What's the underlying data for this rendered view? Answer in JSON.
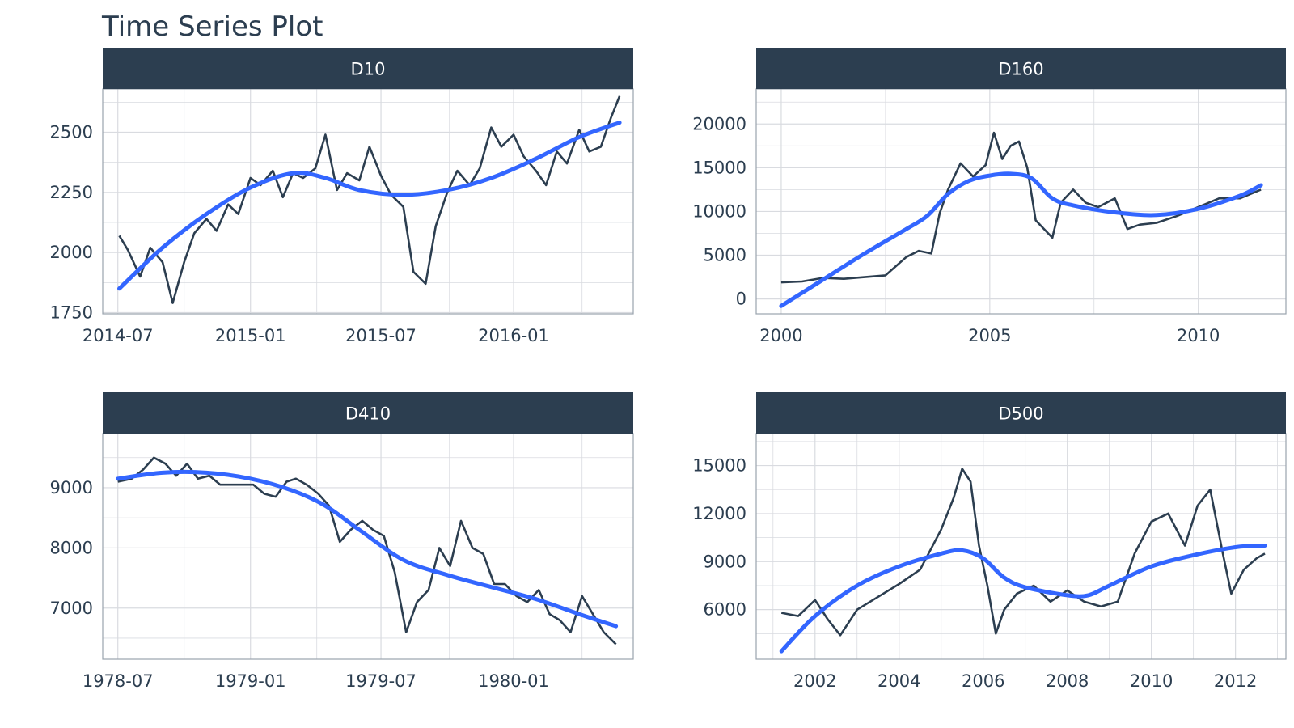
{
  "chart_data": {
    "type": "line",
    "title": "Time Series Plot",
    "colors": {
      "strip_bg": "#2c3e50",
      "strip_text": "#ffffff",
      "series": "#2c3e50",
      "smooth": "#3366ff",
      "grid": "#d9dbe0",
      "text": "#2c3e50"
    },
    "facets": [
      {
        "id": "D10",
        "label": "D10",
        "x_type": "date",
        "xlim": [
          "2014-06-10",
          "2016-06-15"
        ],
        "ylim": [
          1745,
          2680
        ],
        "x_ticks": [
          "2014-07",
          "2015-01",
          "2015-07",
          "2016-01"
        ],
        "y_ticks": [
          1750,
          2000,
          2250,
          2500
        ],
        "series": {
          "x": [
            "2014-07-03",
            "2014-07-15",
            "2014-08-01",
            "2014-08-15",
            "2014-09-01",
            "2014-09-15",
            "2014-10-01",
            "2014-10-15",
            "2014-11-01",
            "2014-11-15",
            "2014-12-01",
            "2014-12-15",
            "2015-01-01",
            "2015-01-15",
            "2015-02-01",
            "2015-02-15",
            "2015-03-01",
            "2015-03-15",
            "2015-04-01",
            "2015-04-15",
            "2015-05-01",
            "2015-05-15",
            "2015-06-01",
            "2015-06-15",
            "2015-07-01",
            "2015-07-15",
            "2015-08-01",
            "2015-08-15",
            "2015-09-01",
            "2015-09-15",
            "2015-10-01",
            "2015-10-15",
            "2015-11-01",
            "2015-11-15",
            "2015-12-01",
            "2015-12-15",
            "2016-01-01",
            "2016-01-15",
            "2016-02-01",
            "2016-02-15",
            "2016-03-01",
            "2016-03-15",
            "2016-04-01",
            "2016-04-15",
            "2016-05-01",
            "2016-05-15",
            "2016-05-27"
          ],
          "y": [
            2070,
            2010,
            1900,
            2020,
            1960,
            1790,
            1960,
            2080,
            2140,
            2090,
            2200,
            2160,
            2310,
            2280,
            2340,
            2230,
            2330,
            2310,
            2350,
            2490,
            2260,
            2330,
            2300,
            2440,
            2320,
            2240,
            2190,
            1920,
            1870,
            2110,
            2250,
            2340,
            2280,
            2350,
            2520,
            2440,
            2490,
            2400,
            2340,
            2280,
            2420,
            2370,
            2510,
            2420,
            2440,
            2560,
            2650
          ]
        },
        "smooth": {
          "x": [
            "2014-07-03",
            "2014-09-01",
            "2014-11-01",
            "2015-01-01",
            "2015-03-01",
            "2015-04-15",
            "2015-06-01",
            "2015-08-01",
            "2015-10-01",
            "2015-12-01",
            "2016-02-01",
            "2016-04-01",
            "2016-05-27"
          ],
          "y": [
            1850,
            2020,
            2160,
            2270,
            2330,
            2310,
            2260,
            2240,
            2260,
            2310,
            2390,
            2480,
            2540
          ]
        }
      },
      {
        "id": "D160",
        "label": "D160",
        "x_type": "number",
        "xlim": [
          1999.4,
          2012.1
        ],
        "ylim": [
          -1700,
          24000
        ],
        "x_ticks": [
          2000,
          2005,
          2010
        ],
        "y_ticks": [
          0,
          5000,
          10000,
          15000,
          20000
        ],
        "series": {
          "x": [
            2000.0,
            2000.5,
            2001.0,
            2001.5,
            2002.0,
            2002.5,
            2003.0,
            2003.3,
            2003.6,
            2003.8,
            2004.0,
            2004.3,
            2004.6,
            2004.9,
            2005.1,
            2005.3,
            2005.5,
            2005.7,
            2005.9,
            2006.1,
            2006.3,
            2006.5,
            2006.7,
            2007.0,
            2007.3,
            2007.6,
            2008.0,
            2008.3,
            2008.6,
            2009.0,
            2009.5,
            2010.0,
            2010.5,
            2011.0,
            2011.5
          ],
          "y": [
            1900,
            2000,
            2400,
            2300,
            2500,
            2700,
            4800,
            5500,
            5200,
            9800,
            12500,
            15500,
            14000,
            15300,
            19000,
            16000,
            17500,
            18000,
            15000,
            9000,
            8000,
            7000,
            11000,
            12500,
            11000,
            10500,
            11500,
            8000,
            8500,
            8700,
            9500,
            10500,
            11500,
            11500,
            12500
          ]
        },
        "smooth": {
          "x": [
            2000.0,
            2001.0,
            2002.0,
            2003.0,
            2003.5,
            2004.0,
            2004.5,
            2005.0,
            2005.5,
            2006.0,
            2006.5,
            2007.0,
            2008.0,
            2009.0,
            2010.0,
            2011.0,
            2011.5
          ],
          "y": [
            -800,
            2200,
            5200,
            8000,
            9500,
            12000,
            13500,
            14100,
            14300,
            13800,
            11500,
            10700,
            9900,
            9600,
            10300,
            11800,
            13000
          ]
        }
      },
      {
        "id": "D410",
        "label": "D410",
        "x_type": "date",
        "xlim": [
          "1978-06-10",
          "1980-06-15"
        ],
        "ylim": [
          6150,
          9900
        ],
        "x_ticks": [
          "1978-07",
          "1979-01",
          "1979-07",
          "1980-01"
        ],
        "y_ticks": [
          7000,
          8000,
          9000
        ],
        "series": {
          "x": [
            "1978-07-01",
            "1978-07-20",
            "1978-08-05",
            "1978-08-20",
            "1978-09-05",
            "1978-09-20",
            "1978-10-05",
            "1978-10-20",
            "1978-11-05",
            "1978-11-20",
            "1978-12-05",
            "1978-12-20",
            "1979-01-05",
            "1979-01-20",
            "1979-02-05",
            "1979-02-20",
            "1979-03-05",
            "1979-03-20",
            "1979-04-05",
            "1979-04-20",
            "1979-05-05",
            "1979-05-20",
            "1979-06-05",
            "1979-06-20",
            "1979-07-05",
            "1979-07-20",
            "1979-08-05",
            "1979-08-20",
            "1979-09-05",
            "1979-09-20",
            "1979-10-05",
            "1979-10-20",
            "1979-11-05",
            "1979-11-20",
            "1979-12-05",
            "1979-12-20",
            "1980-01-05",
            "1980-01-20",
            "1980-02-05",
            "1980-02-20",
            "1980-03-05",
            "1980-03-20",
            "1980-04-05",
            "1980-04-20",
            "1980-05-05",
            "1980-05-22"
          ],
          "y": [
            9100,
            9150,
            9300,
            9500,
            9400,
            9200,
            9400,
            9150,
            9200,
            9050,
            9050,
            9050,
            9050,
            8900,
            8850,
            9100,
            9150,
            9050,
            8900,
            8700,
            8100,
            8300,
            8450,
            8300,
            8200,
            7600,
            6600,
            7100,
            7300,
            8000,
            7700,
            8450,
            8000,
            7900,
            7400,
            7400,
            7200,
            7100,
            7300,
            6900,
            6800,
            6600,
            7200,
            6900,
            6600,
            6400
          ]
        },
        "smooth": {
          "x": [
            "1978-07-01",
            "1978-09-01",
            "1978-11-01",
            "1979-01-01",
            "1979-03-01",
            "1979-04-15",
            "1979-06-01",
            "1979-08-01",
            "1979-10-01",
            "1979-12-01",
            "1980-02-01",
            "1980-04-01",
            "1980-05-22"
          ],
          "y": [
            9150,
            9250,
            9250,
            9150,
            8950,
            8700,
            8300,
            7800,
            7550,
            7350,
            7150,
            6900,
            6700
          ]
        }
      },
      {
        "id": "D500",
        "label": "D500",
        "x_type": "number",
        "xlim": [
          2000.6,
          2013.2
        ],
        "ylim": [
          2900,
          17000
        ],
        "x_ticks": [
          2002,
          2004,
          2006,
          2008,
          2010,
          2012
        ],
        "y_ticks": [
          6000,
          9000,
          12000,
          15000
        ],
        "series": {
          "x": [
            2001.2,
            2001.6,
            2002.0,
            2002.3,
            2002.6,
            2003.0,
            2003.5,
            2004.0,
            2004.5,
            2005.0,
            2005.3,
            2005.5,
            2005.7,
            2005.9,
            2006.1,
            2006.3,
            2006.5,
            2006.8,
            2007.2,
            2007.6,
            2008.0,
            2008.4,
            2008.8,
            2009.2,
            2009.6,
            2010.0,
            2010.4,
            2010.8,
            2011.1,
            2011.4,
            2011.7,
            2011.9,
            2012.2,
            2012.5,
            2012.7
          ],
          "y": [
            5800,
            5600,
            6600,
            5400,
            4400,
            6000,
            6800,
            7600,
            8500,
            11000,
            13000,
            14800,
            14000,
            10000,
            7500,
            4500,
            6000,
            7000,
            7500,
            6500,
            7200,
            6500,
            6200,
            6500,
            9500,
            11500,
            12000,
            10000,
            12500,
            13500,
            9500,
            7000,
            8500,
            9200,
            9500
          ]
        },
        "smooth": {
          "x": [
            2001.2,
            2002.0,
            2003.0,
            2004.0,
            2005.0,
            2005.5,
            2006.0,
            2006.5,
            2007.0,
            2008.0,
            2008.5,
            2009.0,
            2010.0,
            2011.0,
            2012.0,
            2012.7
          ],
          "y": [
            3400,
            5600,
            7500,
            8700,
            9500,
            9700,
            9200,
            8000,
            7400,
            6900,
            6900,
            7500,
            8700,
            9400,
            9900,
            10000
          ]
        }
      }
    ]
  }
}
